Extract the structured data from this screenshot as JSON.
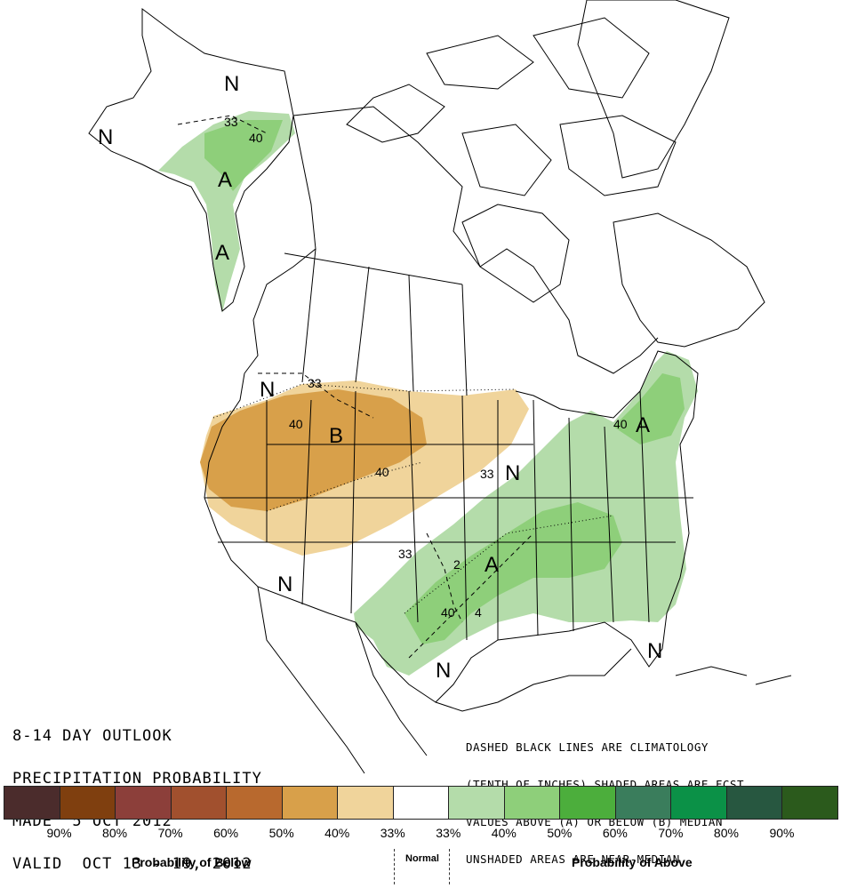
{
  "title": {
    "line1": "8-14 DAY OUTLOOK",
    "line2": "PRECIPITATION PROBABILITY",
    "line3": "MADE  5 OCT 2012",
    "line4": "VALID  OCT 13 - 19, 2012"
  },
  "note": {
    "line1": "DASHED BLACK LINES ARE CLIMATOLOGY",
    "line2": "(TENTH OF INCHES) SHADED AREAS ARE FCST",
    "line3": "VALUES ABOVE (A) OR BELOW (B) MEDIAN",
    "line4": "UNSHADED AREAS ARE NEAR-MEDIAN"
  },
  "map_labels": {
    "n": "N",
    "a": "A",
    "b": "B",
    "c33": "33",
    "c40": "40",
    "c2": "2",
    "c4": "4"
  },
  "legend": {
    "below_label": "Probability of Below",
    "normal_label": "Normal",
    "above_label": "Probability of Above",
    "swatches": [
      {
        "color": "#4b2c2c"
      },
      {
        "color": "#7f3f0f"
      },
      {
        "color": "#8c3f3a"
      },
      {
        "color": "#a1502e"
      },
      {
        "color": "#b8692e"
      },
      {
        "color": "#d8a04a"
      },
      {
        "color": "#f0d49b"
      },
      {
        "color": "#ffffff"
      },
      {
        "color": "#b4dcaa"
      },
      {
        "color": "#8ecf7a"
      },
      {
        "color": "#4cae3c"
      },
      {
        "color": "#3a7d5c"
      },
      {
        "color": "#0b9147"
      },
      {
        "color": "#275740"
      },
      {
        "color": "#2b5a1c"
      }
    ],
    "percents": [
      "90%",
      "80%",
      "70%",
      "60%",
      "50%",
      "40%",
      "33%",
      "33%",
      "40%",
      "50%",
      "60%",
      "70%",
      "80%",
      "90%"
    ]
  },
  "colors": {
    "below_40": "#f0d49b",
    "below_50": "#d8a04a",
    "above_33": "#b4dcaa",
    "above_40": "#8ecf7a"
  }
}
